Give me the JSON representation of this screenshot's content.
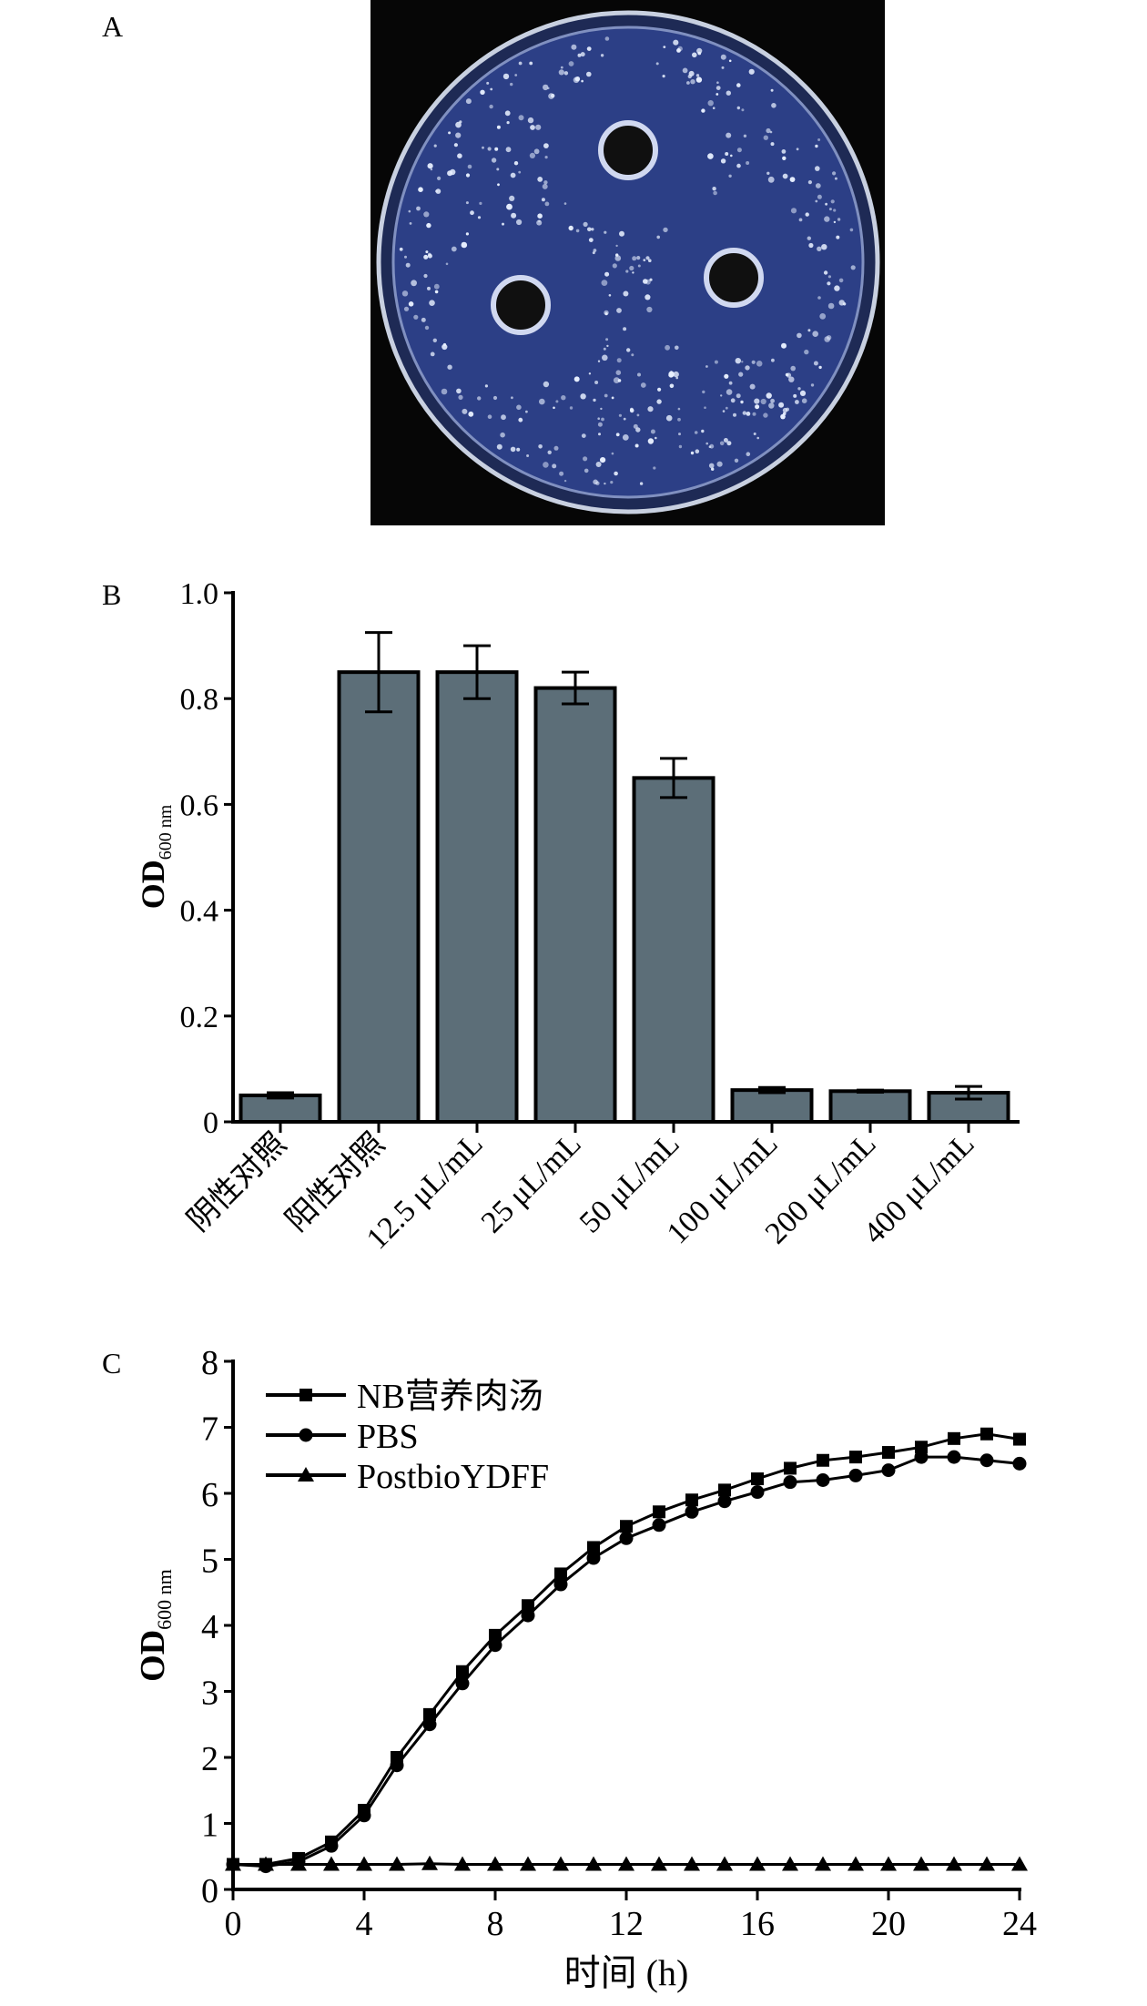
{
  "panels": {
    "a": "A",
    "b": "B",
    "c": "C"
  },
  "colors": {
    "bar": "#5c6e78",
    "dish": "#2c3f86",
    "line": "#000000"
  },
  "chart_data": [
    {
      "type": "bar",
      "panel": "B",
      "categories": [
        "阴性对照",
        "阳性对照",
        "12.5 μL/mL",
        "25 μL/mL",
        "50 μL/mL",
        "100 μL/mL",
        "200 μL/mL",
        "400 μL/mL"
      ],
      "values": [
        0.05,
        0.85,
        0.85,
        0.82,
        0.65,
        0.06,
        0.058,
        0.055
      ],
      "errors": [
        0.005,
        0.075,
        0.05,
        0.03,
        0.037,
        0.005,
        0.002,
        0.012
      ],
      "ylabel": "OD",
      "ylabel_sub": "600 nm",
      "ylim": [
        0,
        1.0
      ],
      "yticks": [
        "0",
        "0.2",
        "0.4",
        "0.6",
        "0.8",
        "1.0"
      ]
    },
    {
      "type": "line",
      "panel": "C",
      "x": [
        0,
        1,
        2,
        3,
        4,
        5,
        6,
        7,
        8,
        9,
        10,
        11,
        12,
        13,
        14,
        15,
        16,
        17,
        18,
        19,
        20,
        21,
        22,
        23,
        24
      ],
      "series": [
        {
          "name": "NB营养肉汤",
          "marker": "square",
          "values": [
            0.38,
            0.38,
            0.47,
            0.72,
            1.2,
            2.0,
            2.65,
            3.3,
            3.85,
            4.3,
            4.78,
            5.18,
            5.5,
            5.72,
            5.9,
            6.05,
            6.22,
            6.38,
            6.5,
            6.55,
            6.62,
            6.7,
            6.83,
            6.9,
            6.82
          ]
        },
        {
          "name": "PBS",
          "marker": "circle",
          "values": [
            0.38,
            0.35,
            0.42,
            0.66,
            1.12,
            1.88,
            2.5,
            3.12,
            3.7,
            4.15,
            4.62,
            5.02,
            5.32,
            5.52,
            5.72,
            5.88,
            6.02,
            6.17,
            6.2,
            6.27,
            6.35,
            6.55,
            6.55,
            6.5,
            6.45
          ]
        },
        {
          "name": "PostbioYDFF",
          "marker": "triangle",
          "values": [
            0.38,
            0.38,
            0.38,
            0.38,
            0.38,
            0.38,
            0.39,
            0.38,
            0.38,
            0.38,
            0.38,
            0.38,
            0.38,
            0.38,
            0.38,
            0.38,
            0.38,
            0.38,
            0.38,
            0.38,
            0.38,
            0.38,
            0.38,
            0.38,
            0.38
          ]
        }
      ],
      "xlabel": "时间 (h)",
      "ylabel": "OD",
      "ylabel_sub": "600 nm",
      "xlim": [
        0,
        24
      ],
      "ylim": [
        0,
        8
      ],
      "xticks": [
        "0",
        "4",
        "8",
        "12",
        "16",
        "20",
        "24"
      ],
      "yticks": [
        "0",
        "1",
        "2",
        "3",
        "4",
        "5",
        "6",
        "7",
        "8"
      ],
      "legend": "top-left"
    }
  ]
}
